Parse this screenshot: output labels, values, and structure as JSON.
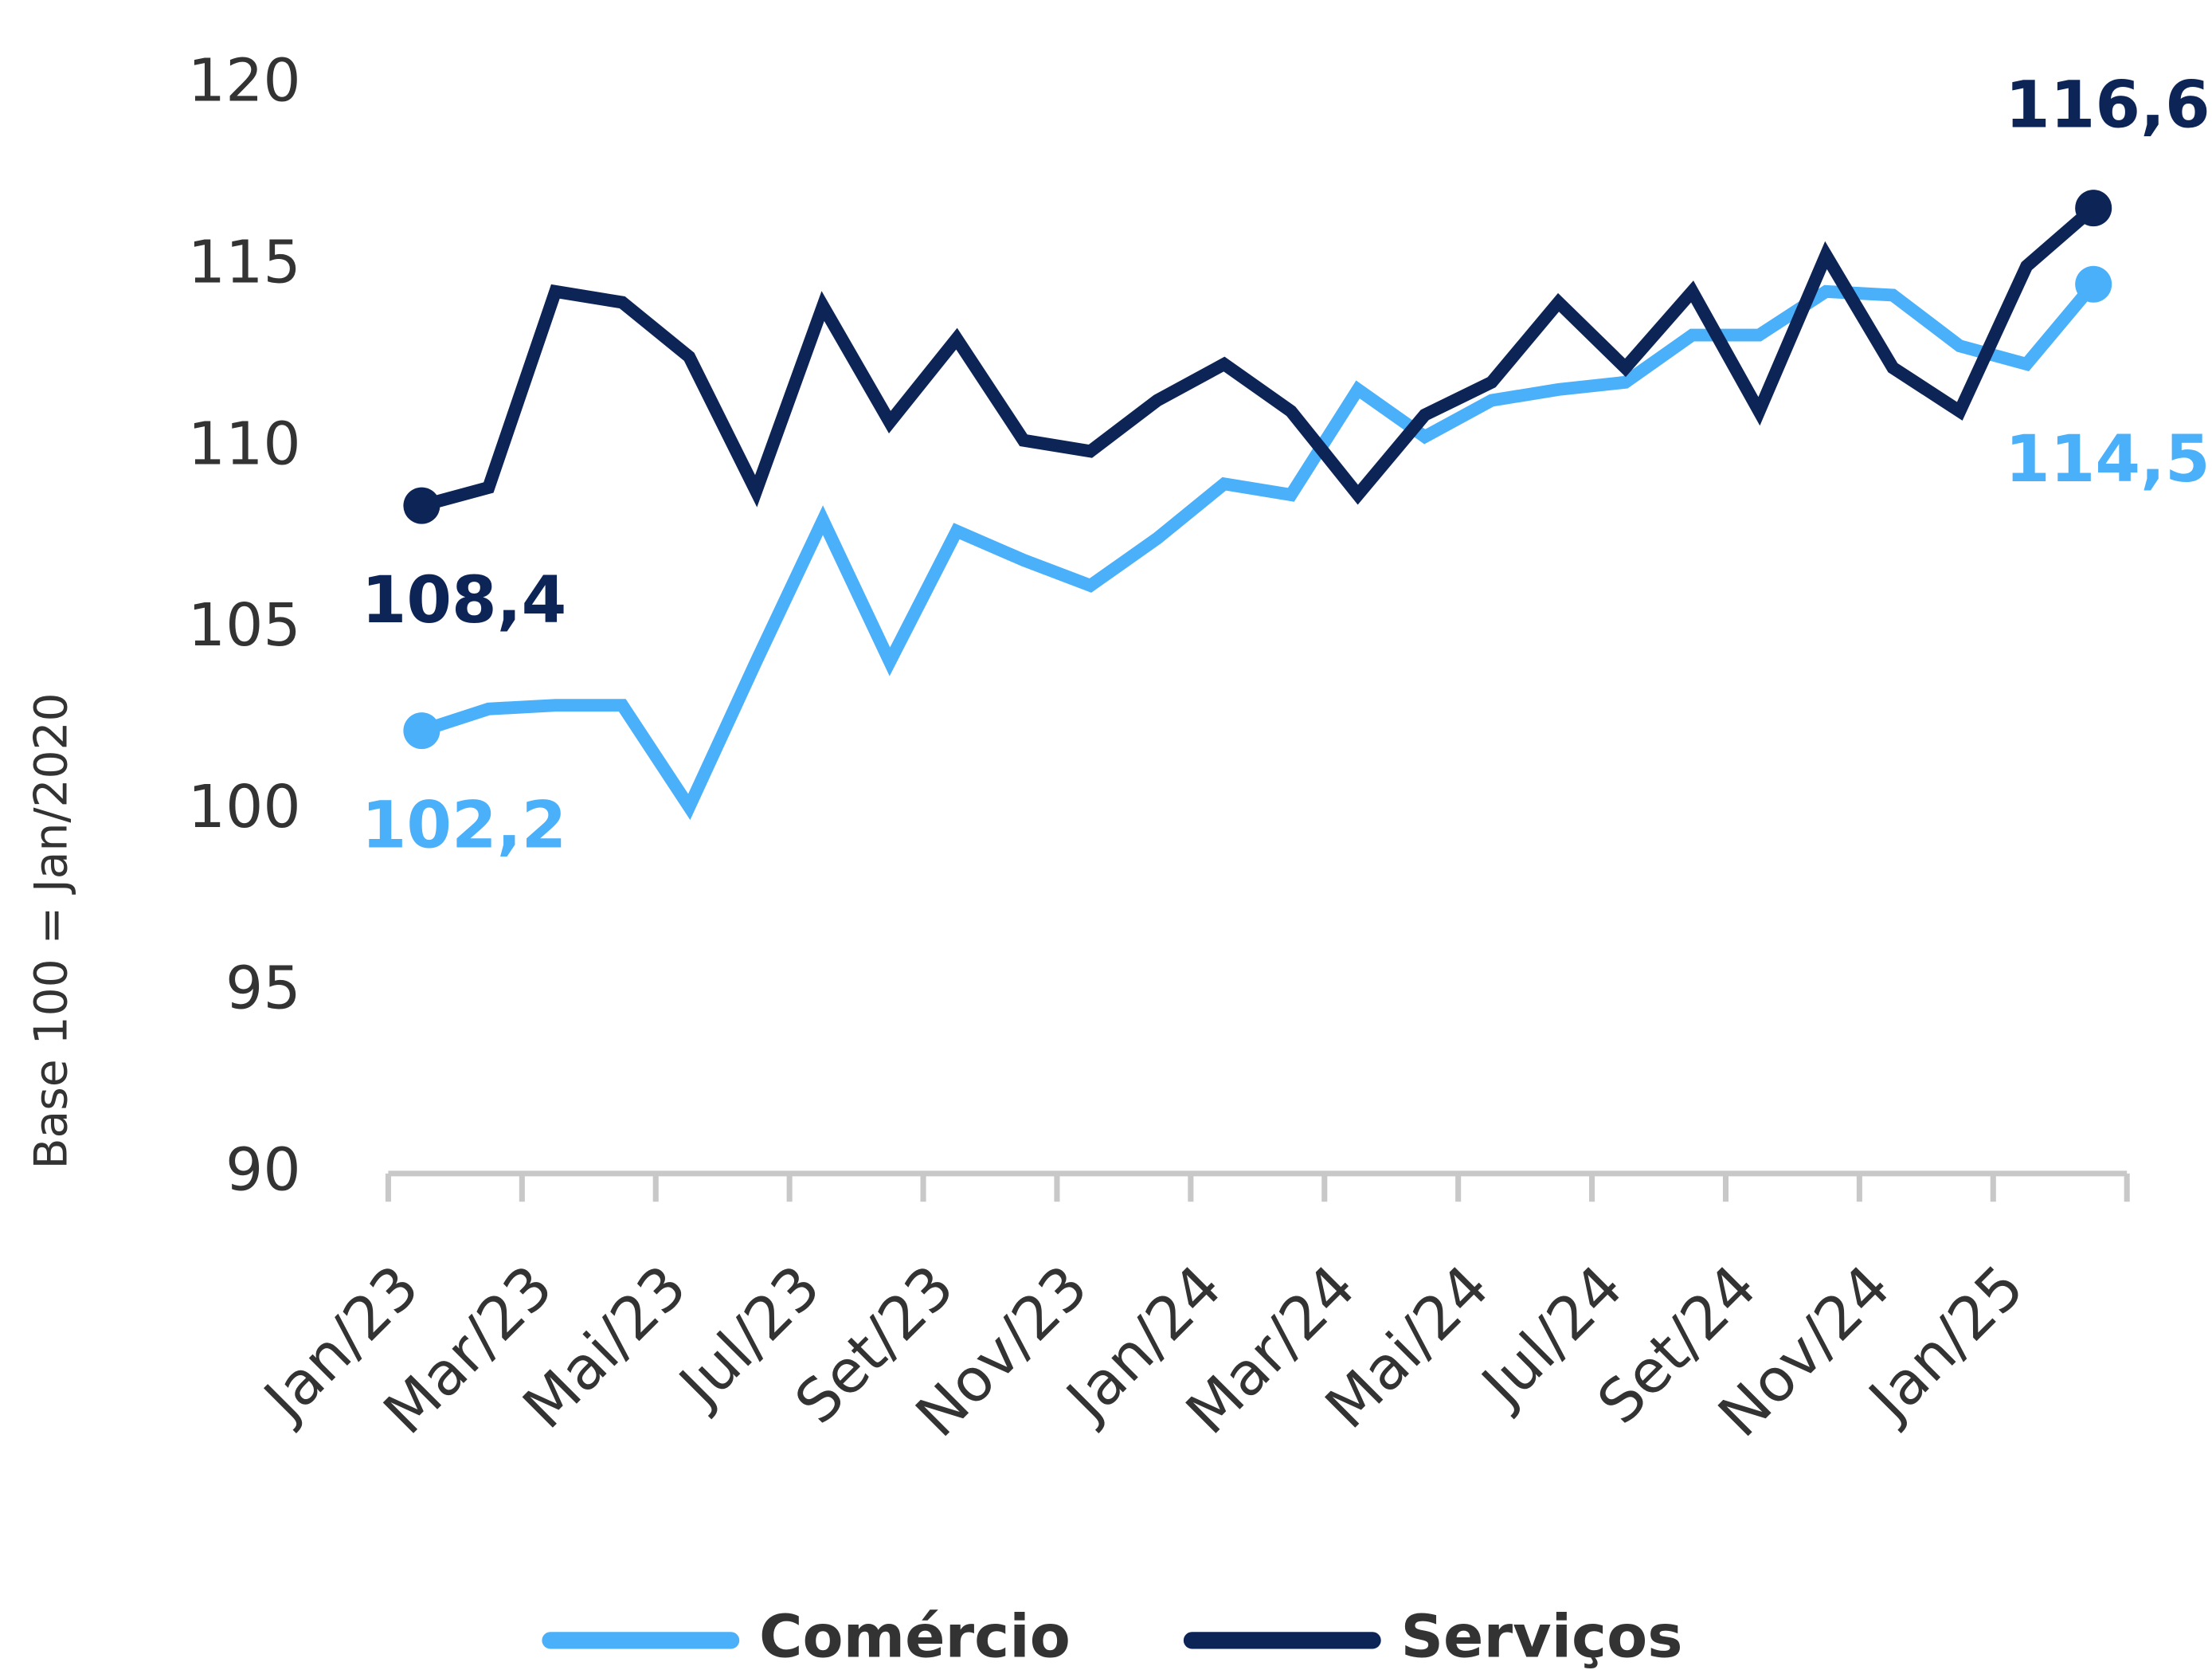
{
  "chart_data": {
    "type": "line",
    "ylabel": "Base 100 = Jan/2020",
    "categories": [
      "Jan/23",
      null,
      "Mar/23",
      null,
      "Mai/23",
      null,
      "Jul/23",
      null,
      "Set/23",
      null,
      "Nov/23",
      null,
      "Jan/24",
      null,
      "Mar/24",
      null,
      "Mai/24",
      null,
      "Jul/24",
      null,
      "Set/24",
      null,
      "Nov/24",
      null,
      "Jan/25",
      null
    ],
    "series": [
      {
        "name": "Comércio",
        "color": "#4ab0fa",
        "values": [
          102.2,
          102.8,
          102.9,
          102.9,
          100.1,
          104.1,
          108.0,
          104.1,
          107.7,
          106.9,
          106.2,
          107.5,
          109.0,
          108.7,
          111.6,
          110.3,
          111.3,
          111.6,
          111.8,
          113.1,
          113.1,
          114.3,
          114.2,
          112.8,
          112.3,
          114.5
        ],
        "value_labels": [
          "102,2",
          null,
          null,
          null,
          null,
          null,
          null,
          null,
          null,
          null,
          null,
          null,
          null,
          null,
          null,
          null,
          null,
          null,
          null,
          null,
          null,
          null,
          null,
          null,
          null,
          "114,5"
        ]
      },
      {
        "name": "Serviços",
        "color": "#0d2456",
        "values": [
          108.4,
          108.9,
          114.3,
          114.0,
          112.5,
          108.8,
          113.9,
          110.7,
          113.0,
          110.2,
          109.9,
          111.3,
          112.3,
          111.0,
          108.7,
          110.9,
          111.8,
          114.0,
          112.2,
          114.3,
          111.0,
          115.3,
          112.2,
          111.0,
          115.0,
          116.6
        ],
        "value_labels": [
          "108,4",
          null,
          null,
          null,
          null,
          null,
          null,
          null,
          null,
          null,
          null,
          null,
          null,
          null,
          null,
          null,
          null,
          null,
          null,
          null,
          null,
          null,
          null,
          null,
          null,
          "116,6"
        ]
      }
    ],
    "ylim": [
      90,
      120
    ],
    "yticks": [
      90,
      95,
      100,
      105,
      110,
      115,
      120
    ],
    "grid": false,
    "legend": "bottom"
  }
}
